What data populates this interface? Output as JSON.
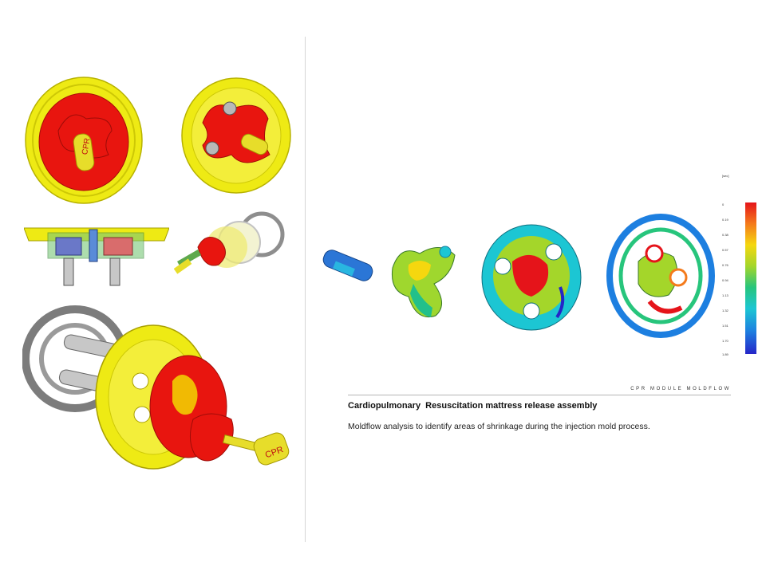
{
  "section_label": "CPR MODULE MOLDFLOW",
  "caption": {
    "title": "Cardiopulmonary  Resuscitation mattress release assembly",
    "body": "Moldflow analysis to identify areas of shrinkage during the injection mold process."
  },
  "handle_text": "CPR",
  "legend": {
    "unit": "[sec]",
    "ticks": [
      "0",
      "0.19",
      "0.38",
      "0.57",
      "0.76",
      "0.94",
      "1.13",
      "1.32",
      "1.51",
      "1.70",
      "1.89"
    ]
  },
  "colors": {
    "yellow": "#f0ea10",
    "red": "#e8150f",
    "gray": "#8a8a8a"
  }
}
